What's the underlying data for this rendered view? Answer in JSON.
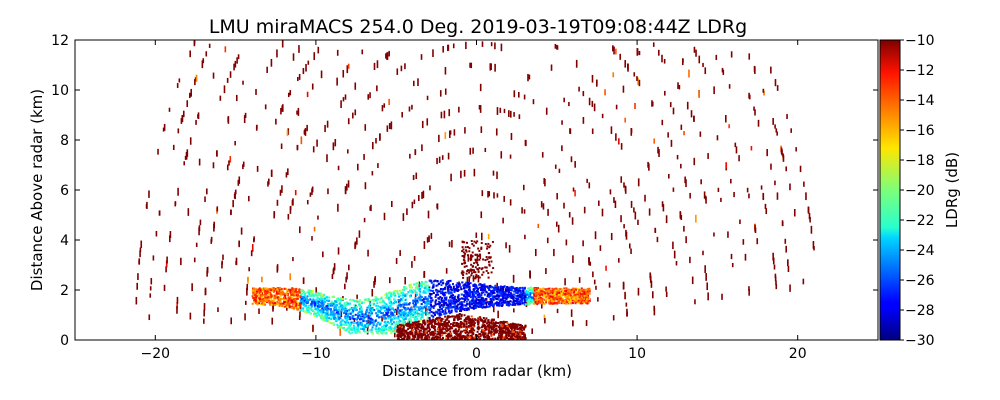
{
  "chart_data": {
    "type": "heatmap",
    "title": "LMU miraMACS 254.0 Deg. 2019-03-19T09:08:44Z  LDRg",
    "xlabel": "Distance from radar (km)",
    "ylabel": "Distance Above radar  (km)",
    "xlim": [
      -25,
      25
    ],
    "ylim": [
      0,
      12
    ],
    "xticks": [
      -20,
      -10,
      0,
      10,
      20
    ],
    "yticks": [
      0,
      2,
      4,
      6,
      8,
      10,
      12
    ],
    "colorbar": {
      "label": "LDRg (dB)",
      "range": [
        -30,
        -10
      ],
      "ticks": [
        -10,
        -12,
        -14,
        -16,
        -18,
        -20,
        -22,
        -24,
        -26,
        -28,
        -30
      ],
      "colormap": "jet"
    },
    "regions": [
      {
        "name": "sparse noise speckle",
        "x_range": [
          -22,
          21
        ],
        "y_range": [
          0,
          12
        ],
        "ldr_db": -10
      },
      {
        "name": "cloud layer",
        "x_range": [
          -14,
          7
        ],
        "y_range": [
          0.5,
          2.6
        ],
        "ldr_db_range": [
          -28,
          -16
        ]
      },
      {
        "name": "near-surface clutter",
        "x_range": [
          -5,
          3
        ],
        "y_range": [
          0,
          1
        ],
        "ldr_db": -10
      },
      {
        "name": "above-radar column",
        "x_range": [
          -1,
          1
        ],
        "y_range": [
          2.5,
          4
        ],
        "ldr_db": -10
      }
    ]
  }
}
